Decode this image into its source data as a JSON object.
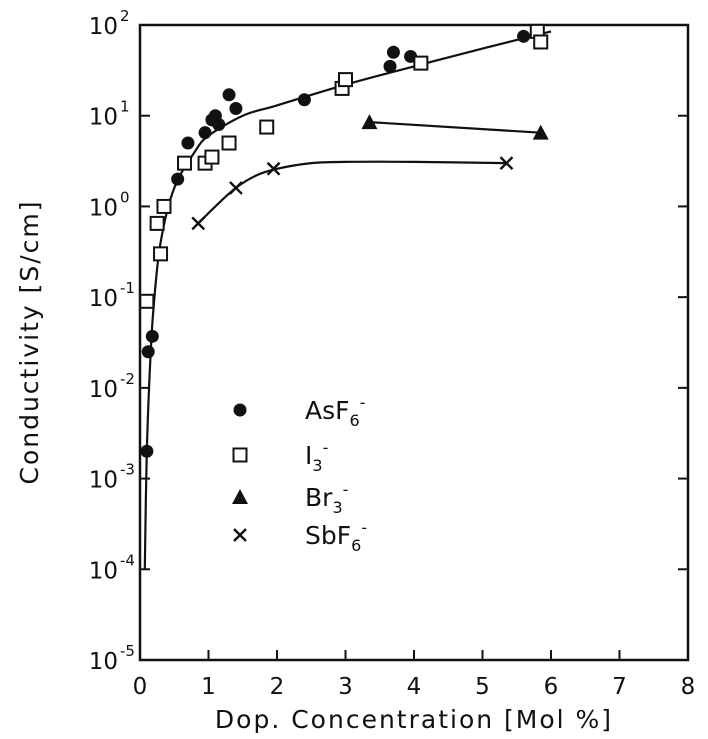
{
  "chart_data": {
    "type": "scatter",
    "xlabel": "Dop. Concentration [Mol %]",
    "ylabel": "Conductivity [S/cm]",
    "xlim": [
      0,
      8
    ],
    "ylim": [
      1e-05,
      100
    ],
    "yscale": "log",
    "x_ticks": [
      "0",
      "1",
      "2",
      "3",
      "4",
      "5",
      "6",
      "7",
      "8"
    ],
    "y_ticks": [
      {
        "base": "10",
        "exp": "-5",
        "value": 1e-05
      },
      {
        "base": "10",
        "exp": "-4",
        "value": 0.0001
      },
      {
        "base": "10",
        "exp": "-3",
        "value": 0.001
      },
      {
        "base": "10",
        "exp": "-2",
        "value": 0.01
      },
      {
        "base": "10",
        "exp": "-1",
        "value": 0.1
      },
      {
        "base": "10",
        "exp": "0",
        "value": 1
      },
      {
        "base": "10",
        "exp": "1",
        "value": 10
      },
      {
        "base": "10",
        "exp": "2",
        "value": 100
      }
    ],
    "legend_position": "center-left",
    "series": [
      {
        "name": "AsF6-",
        "label_main": "AsF",
        "label_sub": "6",
        "label_sup": "-",
        "marker": "filled-circle",
        "points": [
          [
            0.1,
            0.002
          ],
          [
            0.12,
            0.025
          ],
          [
            0.18,
            0.037
          ],
          [
            0.55,
            2.0
          ],
          [
            0.7,
            5.0
          ],
          [
            0.95,
            6.5
          ],
          [
            1.05,
            9.0
          ],
          [
            1.1,
            10.0
          ],
          [
            1.15,
            8.0
          ],
          [
            1.3,
            17.0
          ],
          [
            1.4,
            12.0
          ],
          [
            2.4,
            15.0
          ],
          [
            3.65,
            35.0
          ],
          [
            3.7,
            50.0
          ],
          [
            3.95,
            45.0
          ],
          [
            5.6,
            75.0
          ]
        ],
        "curve": [
          [
            0.07,
            0.0001
          ],
          [
            0.1,
            0.002
          ],
          [
            0.15,
            0.02
          ],
          [
            0.2,
            0.08
          ],
          [
            0.3,
            0.4
          ],
          [
            0.5,
            1.6
          ],
          [
            0.8,
            4.0
          ],
          [
            1.0,
            6.0
          ],
          [
            1.5,
            10.0
          ],
          [
            2.0,
            13.0
          ],
          [
            3.0,
            22.0
          ],
          [
            4.0,
            35.0
          ],
          [
            5.0,
            55.0
          ],
          [
            6.0,
            85.0
          ]
        ]
      },
      {
        "name": "I3-",
        "label_main": "I",
        "label_sub": "3",
        "label_sup": "-",
        "marker": "open-square",
        "points": [
          [
            0.1,
            0.09
          ],
          [
            0.25,
            0.65
          ],
          [
            0.3,
            0.3
          ],
          [
            0.35,
            1.0
          ],
          [
            0.65,
            3.0
          ],
          [
            0.95,
            3.0
          ],
          [
            1.05,
            3.5
          ],
          [
            1.3,
            5.0
          ],
          [
            1.85,
            7.5
          ],
          [
            2.95,
            20.0
          ],
          [
            3.0,
            25.0
          ],
          [
            4.1,
            38.0
          ],
          [
            5.8,
            85.0
          ],
          [
            5.85,
            65.0
          ]
        ]
      },
      {
        "name": "Br3-",
        "label_main": "Br",
        "label_sub": "3",
        "label_sup": "-",
        "marker": "filled-triangle",
        "points": [
          [
            3.35,
            8.5
          ],
          [
            5.85,
            6.5
          ]
        ]
      },
      {
        "name": "SbF6-",
        "label_main": "SbF",
        "label_sub": "6",
        "label_sup": "-",
        "marker": "cross",
        "points": [
          [
            0.85,
            0.65
          ],
          [
            1.4,
            1.6
          ],
          [
            1.95,
            2.6
          ],
          [
            5.35,
            3.0
          ]
        ],
        "curve": [
          [
            0.85,
            0.65
          ],
          [
            1.1,
            1.0
          ],
          [
            1.4,
            1.6
          ],
          [
            1.7,
            2.2
          ],
          [
            2.0,
            2.6
          ],
          [
            2.5,
            3.0
          ],
          [
            3.0,
            3.1
          ],
          [
            4.0,
            3.1
          ],
          [
            5.35,
            3.0
          ]
        ]
      }
    ]
  }
}
